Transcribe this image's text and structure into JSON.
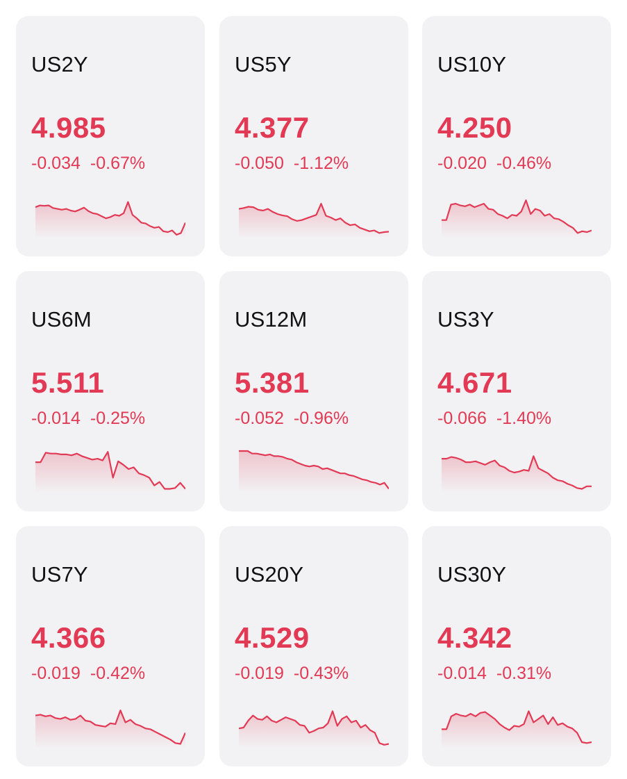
{
  "colors": {
    "negative": "#e23a55",
    "card_bg": "#f2f2f4",
    "text": "#111111"
  },
  "cards": [
    {
      "symbol": "US2Y",
      "price": "4.985",
      "change": "-0.034",
      "change_pct": "-0.67%",
      "sparkline": [
        0.66,
        0.7,
        0.69,
        0.7,
        0.64,
        0.62,
        0.6,
        0.62,
        0.58,
        0.56,
        0.6,
        0.65,
        0.57,
        0.52,
        0.5,
        0.45,
        0.4,
        0.43,
        0.48,
        0.46,
        0.52,
        0.78,
        0.48,
        0.4,
        0.3,
        0.28,
        0.22,
        0.18,
        0.2,
        0.1,
        0.08,
        0.12,
        0.02,
        0.06,
        0.3
      ]
    },
    {
      "symbol": "US5Y",
      "price": "4.377",
      "change": "-0.050",
      "change_pct": "-1.12%",
      "sparkline": [
        0.62,
        0.64,
        0.67,
        0.66,
        0.6,
        0.58,
        0.62,
        0.55,
        0.5,
        0.47,
        0.45,
        0.38,
        0.34,
        0.36,
        0.4,
        0.44,
        0.48,
        0.74,
        0.46,
        0.42,
        0.36,
        0.4,
        0.3,
        0.24,
        0.26,
        0.18,
        0.14,
        0.1,
        0.12,
        0.06,
        0.08,
        0.09
      ]
    },
    {
      "symbol": "US10Y",
      "price": "4.250",
      "change": "-0.020",
      "change_pct": "-0.46%",
      "sparkline": [
        0.36,
        0.36,
        0.72,
        0.74,
        0.7,
        0.68,
        0.72,
        0.66,
        0.7,
        0.74,
        0.62,
        0.6,
        0.5,
        0.46,
        0.4,
        0.48,
        0.46,
        0.56,
        0.82,
        0.5,
        0.62,
        0.58,
        0.46,
        0.5,
        0.4,
        0.38,
        0.32,
        0.24,
        0.18,
        0.06,
        0.1,
        0.08,
        0.12
      ]
    },
    {
      "symbol": "US6M",
      "price": "5.511",
      "change": "-0.014",
      "change_pct": "-0.25%",
      "sparkline": [
        0.66,
        0.66,
        0.88,
        0.86,
        0.86,
        0.84,
        0.84,
        0.82,
        0.86,
        0.8,
        0.76,
        0.72,
        0.74,
        0.7,
        0.9,
        0.3,
        0.68,
        0.6,
        0.5,
        0.54,
        0.4,
        0.36,
        0.3,
        0.12,
        0.2,
        0.04,
        0.04,
        0.06,
        0.18,
        0.04
      ]
    },
    {
      "symbol": "US12M",
      "price": "5.381",
      "change": "-0.052",
      "change_pct": "-0.96%",
      "sparkline": [
        0.92,
        0.92,
        0.92,
        0.86,
        0.86,
        0.84,
        0.82,
        0.84,
        0.8,
        0.8,
        0.78,
        0.74,
        0.72,
        0.66,
        0.62,
        0.58,
        0.56,
        0.58,
        0.56,
        0.5,
        0.52,
        0.48,
        0.44,
        0.4,
        0.4,
        0.36,
        0.34,
        0.3,
        0.26,
        0.24,
        0.2,
        0.18,
        0.14,
        0.18,
        0.04
      ]
    },
    {
      "symbol": "US3Y",
      "price": "4.671",
      "change": "-0.066",
      "change_pct": "-1.40%",
      "sparkline": [
        0.74,
        0.74,
        0.78,
        0.76,
        0.72,
        0.66,
        0.66,
        0.68,
        0.64,
        0.6,
        0.66,
        0.7,
        0.58,
        0.54,
        0.46,
        0.42,
        0.44,
        0.48,
        0.46,
        0.8,
        0.52,
        0.46,
        0.4,
        0.3,
        0.24,
        0.22,
        0.16,
        0.12,
        0.06,
        0.04,
        0.1,
        0.1
      ]
    },
    {
      "symbol": "US7Y",
      "price": "4.366",
      "change": "-0.019",
      "change_pct": "-0.42%",
      "sparkline": [
        0.7,
        0.72,
        0.68,
        0.7,
        0.64,
        0.62,
        0.66,
        0.6,
        0.62,
        0.7,
        0.58,
        0.56,
        0.48,
        0.46,
        0.44,
        0.52,
        0.5,
        0.82,
        0.54,
        0.6,
        0.5,
        0.46,
        0.4,
        0.38,
        0.32,
        0.26,
        0.2,
        0.14,
        0.06,
        0.04,
        0.3
      ]
    },
    {
      "symbol": "US20Y",
      "price": "4.529",
      "change": "-0.019",
      "change_pct": "-0.43%",
      "sparkline": [
        0.4,
        0.42,
        0.58,
        0.7,
        0.62,
        0.6,
        0.68,
        0.58,
        0.54,
        0.6,
        0.66,
        0.62,
        0.58,
        0.48,
        0.46,
        0.3,
        0.34,
        0.4,
        0.42,
        0.52,
        0.8,
        0.46,
        0.62,
        0.68,
        0.54,
        0.58,
        0.42,
        0.48,
        0.36,
        0.3,
        0.06,
        0.02,
        0.04
      ]
    },
    {
      "symbol": "US30Y",
      "price": "4.342",
      "change": "-0.014",
      "change_pct": "-0.31%",
      "sparkline": [
        0.38,
        0.38,
        0.68,
        0.74,
        0.7,
        0.68,
        0.74,
        0.68,
        0.76,
        0.78,
        0.7,
        0.62,
        0.5,
        0.42,
        0.36,
        0.46,
        0.44,
        0.5,
        0.8,
        0.54,
        0.62,
        0.7,
        0.5,
        0.66,
        0.48,
        0.52,
        0.44,
        0.4,
        0.3,
        0.08,
        0.06,
        0.08
      ]
    }
  ]
}
